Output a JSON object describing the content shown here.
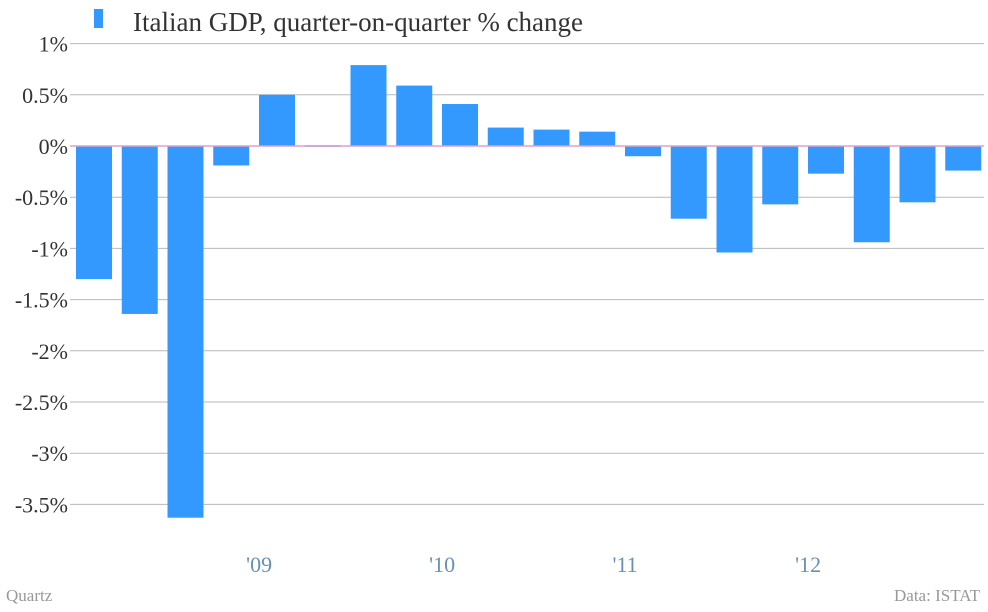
{
  "colors": {
    "bar": "#3399ff",
    "grid": "#b8b8b8",
    "zero_line": "#e0a0c8",
    "tick_text": "#333333",
    "x_text": "#6a8fb5",
    "footer_text": "#999999"
  },
  "legend_icon": "bar-swatch-icon",
  "footer": {
    "source_left": "Quartz",
    "source_right": "Data: ISTAT"
  },
  "chart_data": {
    "type": "bar",
    "legend_position": "top-left",
    "grid": true,
    "series": [
      {
        "name": "Italian GDP, quarter-on-quarter % change",
        "values": [
          -1.3,
          -1.64,
          -3.63,
          -0.19,
          0.5,
          0.01,
          0.79,
          0.59,
          0.41,
          0.18,
          0.16,
          0.14,
          -0.1,
          -0.71,
          -1.04,
          -0.57,
          -0.27,
          -0.94,
          -0.55,
          -0.24
        ]
      }
    ],
    "y_range": [
      -3.9,
      1.0
    ],
    "y_ticks": [
      1,
      0.5,
      0,
      -0.5,
      -1,
      -1.5,
      -2,
      -2.5,
      -3,
      -3.5
    ],
    "y_tick_labels": [
      "1%",
      "0.5%",
      "0%",
      "-0.5%",
      "-1%",
      "-1.5%",
      "-2%",
      "-2.5%",
      "-3%",
      "-3.5%"
    ],
    "x_ticks": [
      {
        "label": "'09",
        "after_bar": 3
      },
      {
        "label": "'10",
        "after_bar": 7
      },
      {
        "label": "'11",
        "after_bar": 11
      },
      {
        "label": "'12",
        "after_bar": 15
      }
    ]
  }
}
